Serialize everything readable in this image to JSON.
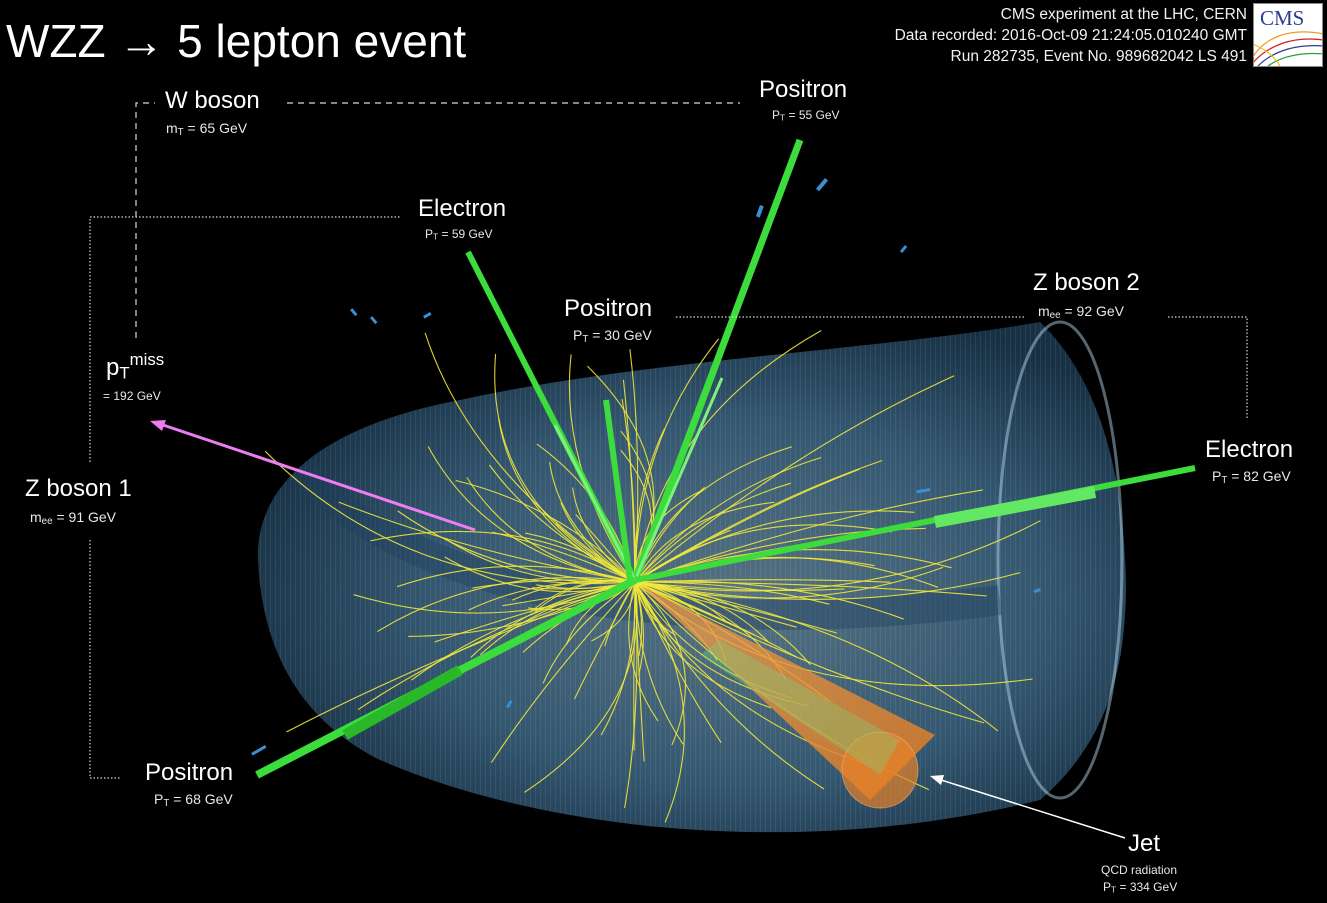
{
  "title": "WZZ → 5 lepton event",
  "header": {
    "line1": "CMS experiment at the LHC, CERN",
    "line2": "Data recorded: 2016-Oct-09 21:24:05.010240 GMT",
    "line3": "Run 282735, Event No. 989682042 LS 491"
  },
  "logo": {
    "text": "CMS"
  },
  "labels": {
    "w_boson": {
      "name": "W boson",
      "sym": "m",
      "sub": "T",
      "value": "= 65 GeV"
    },
    "z_boson_1": {
      "name": "Z boson 1",
      "sym": "m",
      "sub": "ee",
      "value": "= 91 GeV"
    },
    "z_boson_2": {
      "name": "Z boson 2",
      "sym": "m",
      "sub": "ee",
      "value": "= 92 GeV"
    },
    "ptmiss": {
      "base": "p",
      "sub": "T",
      "sup": "miss",
      "value": "= 192 GeV"
    },
    "positron_top": {
      "name": "Positron",
      "sym": "P",
      "sub": "T",
      "value": "= 55 GeV"
    },
    "electron_left": {
      "name": "Electron",
      "sym": "P",
      "sub": "T",
      "value": "= 59 GeV"
    },
    "positron_mid": {
      "name": "Positron",
      "sym": "P",
      "sub": "T",
      "value": "= 30 GeV"
    },
    "electron_right": {
      "name": "Electron",
      "sym": "P",
      "sub": "T",
      "value": "= 82 GeV"
    },
    "positron_bottom": {
      "name": "Positron",
      "sym": "P",
      "sub": "T",
      "value": "= 68 GeV"
    },
    "jet": {
      "name": "Jet",
      "desc": "QCD radiation",
      "sym": "P",
      "sub": "T",
      "value": "= 334 GeV"
    }
  },
  "colors": {
    "background": "#000000",
    "detector": "#6fb3dd",
    "lepton_track": "#3ddc3d",
    "charged_track": "#f2e83a",
    "jet_cone": "#f08a2a",
    "missing_pt": "#ee7ef0"
  }
}
